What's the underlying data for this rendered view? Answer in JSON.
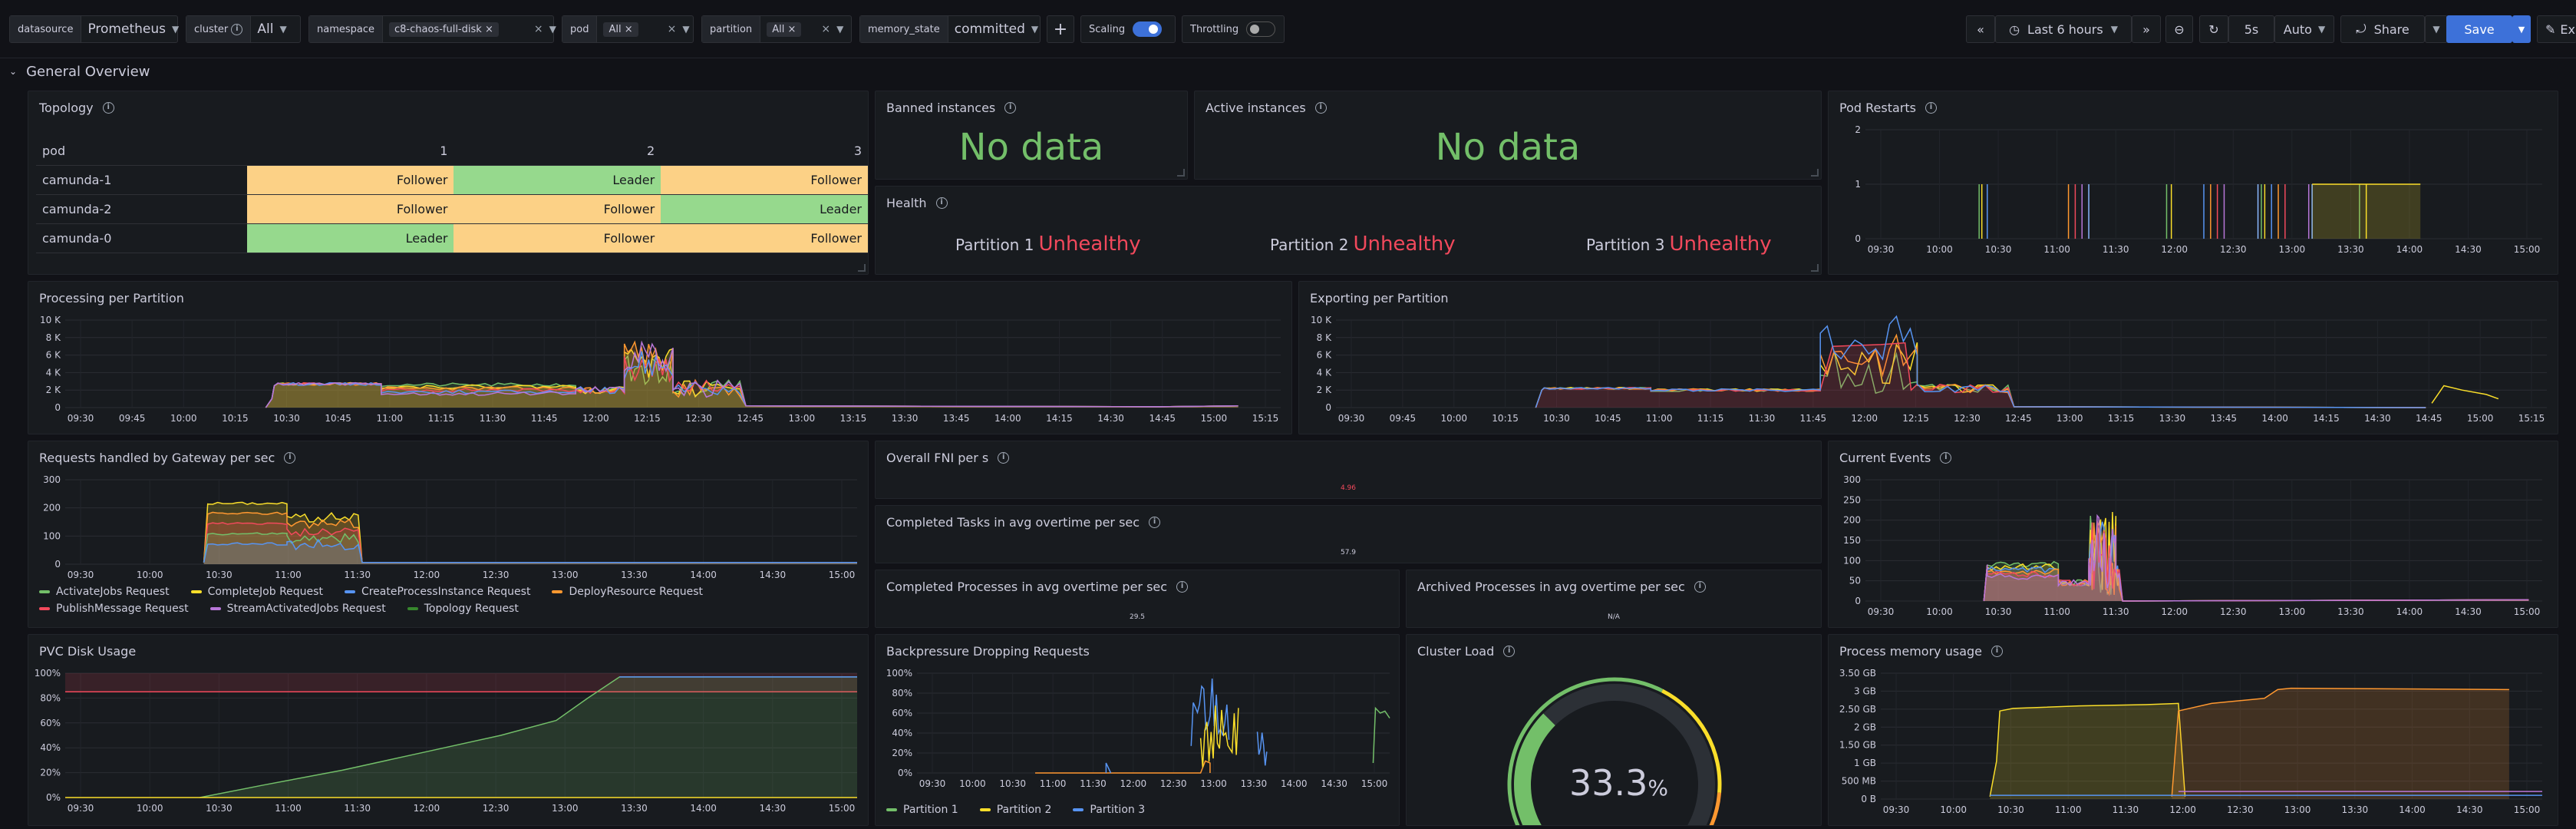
{
  "variables": [
    {
      "label": "datasource",
      "value": "Prometheus",
      "type": "select"
    },
    {
      "label": "cluster",
      "value": "All",
      "type": "select",
      "info": true
    },
    {
      "label": "namespace",
      "value": "c8-chaos-full-disk",
      "type": "multi"
    },
    {
      "label": "pod",
      "value": "All",
      "type": "multi"
    },
    {
      "label": "partition",
      "value": "All",
      "type": "multi"
    },
    {
      "label": "memory_state",
      "value": "committed",
      "type": "select"
    }
  ],
  "controls": {
    "add": "+",
    "scaling_label": "Scaling",
    "scaling_on": true,
    "throttling_label": "Throttling",
    "throttling_on": false,
    "time_range": "Last 6 hours",
    "refresh": "5s",
    "refresh_mode": "Auto",
    "share": "Share",
    "save": "Save",
    "edit": "Ex"
  },
  "row_title": "General Overview",
  "panels": {
    "topology": {
      "title": "Topology",
      "columns": [
        "pod",
        "1",
        "2",
        "3"
      ],
      "rows": [
        {
          "pod": "camunda-1",
          "roles": [
            "Follower",
            "Leader",
            "Follower"
          ]
        },
        {
          "pod": "camunda-2",
          "roles": [
            "Follower",
            "Follower",
            "Leader"
          ]
        },
        {
          "pod": "camunda-0",
          "roles": [
            "Leader",
            "Follower",
            "Follower"
          ]
        }
      ]
    },
    "banned": {
      "title": "Banned instances",
      "value": "No data"
    },
    "active": {
      "title": "Active instances",
      "value": "No data"
    },
    "health": {
      "title": "Health",
      "items": [
        {
          "label": "Partition 1",
          "value": "Unhealthy"
        },
        {
          "label": "Partition 2",
          "value": "Unhealthy"
        },
        {
          "label": "Partition 3",
          "value": "Unhealthy"
        }
      ]
    },
    "pod_restarts": {
      "title": "Pod Restarts"
    },
    "processing": {
      "title": "Processing per Partition"
    },
    "exporting": {
      "title": "Exporting per Partition"
    },
    "requests": {
      "title": "Requests handled by Gateway per sec"
    },
    "fni": {
      "title": "Overall FNI per s",
      "value": "4.96"
    },
    "completed_tasks": {
      "title": "Completed Tasks in avg overtime per sec",
      "value": "57.9"
    },
    "completed_processes": {
      "title": "Completed Processes in avg overtime per sec",
      "value": "29.5"
    },
    "archived_processes": {
      "title": "Archived Processes in avg overtime per sec",
      "value": "N/A"
    },
    "current_events": {
      "title": "Current Events"
    },
    "pvc": {
      "title": "PVC Disk Usage"
    },
    "backpressure": {
      "title": "Backpressure Dropping Requests"
    },
    "cluster_load": {
      "title": "Cluster Load",
      "value": "33.3",
      "unit": "%"
    },
    "memory": {
      "title": "Process memory usage"
    }
  },
  "chart_data": [
    {
      "id": "pod_restarts",
      "type": "line",
      "yticks": [
        "0",
        "1",
        "2"
      ],
      "xticks": [
        "09:30",
        "10:00",
        "10:30",
        "11:00",
        "11:30",
        "12:00",
        "12:30",
        "13:00",
        "13:30",
        "14:00",
        "14:30",
        "15:00"
      ]
    },
    {
      "id": "processing",
      "type": "line",
      "yticks": [
        "0",
        "2 K",
        "4 K",
        "6 K",
        "8 K",
        "10 K"
      ],
      "xticks": [
        "09:30",
        "09:45",
        "10:00",
        "10:15",
        "10:30",
        "10:45",
        "11:00",
        "11:15",
        "11:30",
        "11:45",
        "12:00",
        "12:15",
        "12:30",
        "12:45",
        "13:00",
        "13:15",
        "13:30",
        "13:45",
        "14:00",
        "14:15",
        "14:30",
        "14:45",
        "15:00",
        "15:15"
      ]
    },
    {
      "id": "exporting",
      "type": "line",
      "yticks": [
        "0",
        "2 K",
        "4 K",
        "6 K",
        "8 K",
        "10 K"
      ],
      "xticks": [
        "09:30",
        "09:45",
        "10:00",
        "10:15",
        "10:30",
        "10:45",
        "11:00",
        "11:15",
        "11:30",
        "11:45",
        "12:00",
        "12:15",
        "12:30",
        "12:45",
        "13:00",
        "13:15",
        "13:30",
        "13:45",
        "14:00",
        "14:15",
        "14:30",
        "14:45",
        "15:00",
        "15:15"
      ]
    },
    {
      "id": "requests",
      "type": "line",
      "yticks": [
        "0",
        "100",
        "200",
        "300"
      ],
      "xticks": [
        "09:30",
        "10:00",
        "10:30",
        "11:00",
        "11:30",
        "12:00",
        "12:30",
        "13:00",
        "13:30",
        "14:00",
        "14:30",
        "15:00"
      ],
      "legend": [
        {
          "name": "ActivateJobs Request",
          "color": "#73bf69"
        },
        {
          "name": "CompleteJob Request",
          "color": "#fade2a"
        },
        {
          "name": "CreateProcessInstance Request",
          "color": "#5794f2"
        },
        {
          "name": "DeployResource Request",
          "color": "#ff9830"
        },
        {
          "name": "PublishMessage Request",
          "color": "#f2495c"
        },
        {
          "name": "StreamActivatedJobs Request",
          "color": "#b877d9"
        },
        {
          "name": "Topology Request",
          "color": "#37872d"
        }
      ]
    },
    {
      "id": "current_events",
      "type": "area",
      "yticks": [
        "0",
        "50",
        "100",
        "150",
        "200",
        "250",
        "300"
      ],
      "xticks": [
        "09:30",
        "10:00",
        "10:30",
        "11:00",
        "11:30",
        "12:00",
        "12:30",
        "13:00",
        "13:30",
        "14:00",
        "14:30",
        "15:00"
      ]
    },
    {
      "id": "pvc",
      "type": "area",
      "yticks": [
        "0%",
        "20%",
        "40%",
        "60%",
        "80%",
        "100%"
      ],
      "xticks": [
        "09:30",
        "10:00",
        "10:30",
        "11:00",
        "11:30",
        "12:00",
        "12:30",
        "13:00",
        "13:30",
        "14:00",
        "14:30",
        "15:00"
      ]
    },
    {
      "id": "backpressure",
      "type": "line",
      "yticks": [
        "0%",
        "20%",
        "40%",
        "60%",
        "80%",
        "100%"
      ],
      "xticks": [
        "09:30",
        "10:00",
        "10:30",
        "11:00",
        "11:30",
        "12:00",
        "12:30",
        "13:00",
        "13:30",
        "14:00",
        "14:30",
        "15:00"
      ],
      "legend": [
        {
          "name": "Partition 1",
          "color": "#73bf69"
        },
        {
          "name": "Partition 2",
          "color": "#fade2a"
        },
        {
          "name": "Partition 3",
          "color": "#5794f2"
        }
      ]
    },
    {
      "id": "cluster_load",
      "type": "gauge",
      "value": 33.3,
      "min": 0,
      "max": 100
    },
    {
      "id": "memory",
      "type": "area",
      "yticks": [
        "0 B",
        "500 MB",
        "1 GB",
        "1.50 GB",
        "2 GB",
        "2.50 GB",
        "3 GB",
        "3.50 GB"
      ],
      "xticks": [
        "09:30",
        "10:00",
        "10:30",
        "11:00",
        "11:30",
        "12:00",
        "12:30",
        "13:00",
        "13:30",
        "14:00",
        "14:30",
        "15:00"
      ]
    }
  ]
}
